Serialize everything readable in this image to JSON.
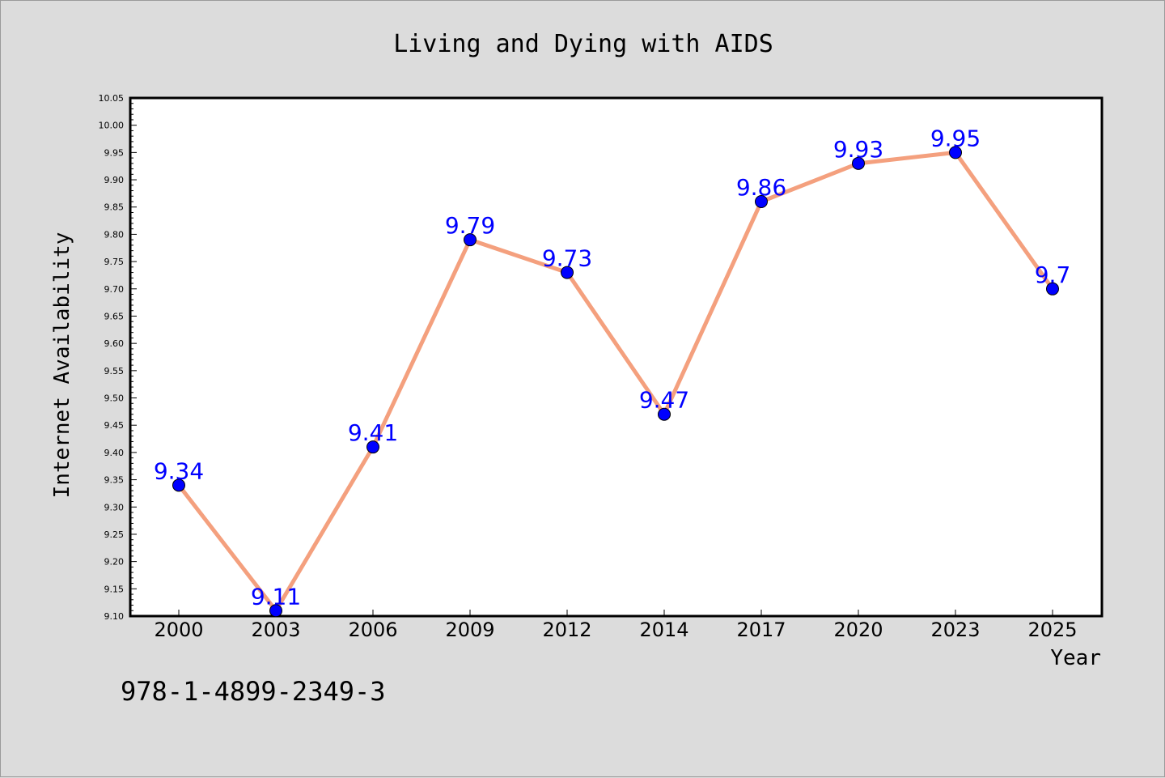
{
  "chart_data": {
    "type": "line",
    "title": "Living and Dying with AIDS",
    "xlabel": "Year",
    "ylabel": "Internet Availability",
    "categories": [
      "2000",
      "2003",
      "2006",
      "2009",
      "2012",
      "2014",
      "2017",
      "2020",
      "2023",
      "2025"
    ],
    "series": [
      {
        "values": [
          9.34,
          9.11,
          9.41,
          9.79,
          9.73,
          9.47,
          9.86,
          9.93,
          9.95,
          9.7
        ],
        "data_labels": [
          "9.34",
          "9.11",
          "9.41",
          "9.79",
          "9.73",
          "9.47",
          "9.86",
          "9.93",
          "9.95",
          "9.7"
        ],
        "line_color": "#f4a07e",
        "marker_color": "#0000ff"
      }
    ],
    "ylim": [
      9.1,
      10.05
    ],
    "yticks": [
      "9.10",
      "9.15",
      "9.20",
      "9.25",
      "9.30",
      "9.35",
      "9.40",
      "9.45",
      "9.50",
      "9.55",
      "9.60",
      "9.65",
      "9.70",
      "9.75",
      "9.80",
      "9.85",
      "9.90",
      "9.95",
      "10.00",
      "10.05"
    ],
    "grid": false,
    "legend": "none"
  },
  "annotation": "978-1-4899-2349-3",
  "colors": {
    "background": "#dcdcdc",
    "plot_area": "#ffffff",
    "line": "#f4a07e",
    "marker": "#0000ff",
    "data_label": "#0000ff"
  }
}
